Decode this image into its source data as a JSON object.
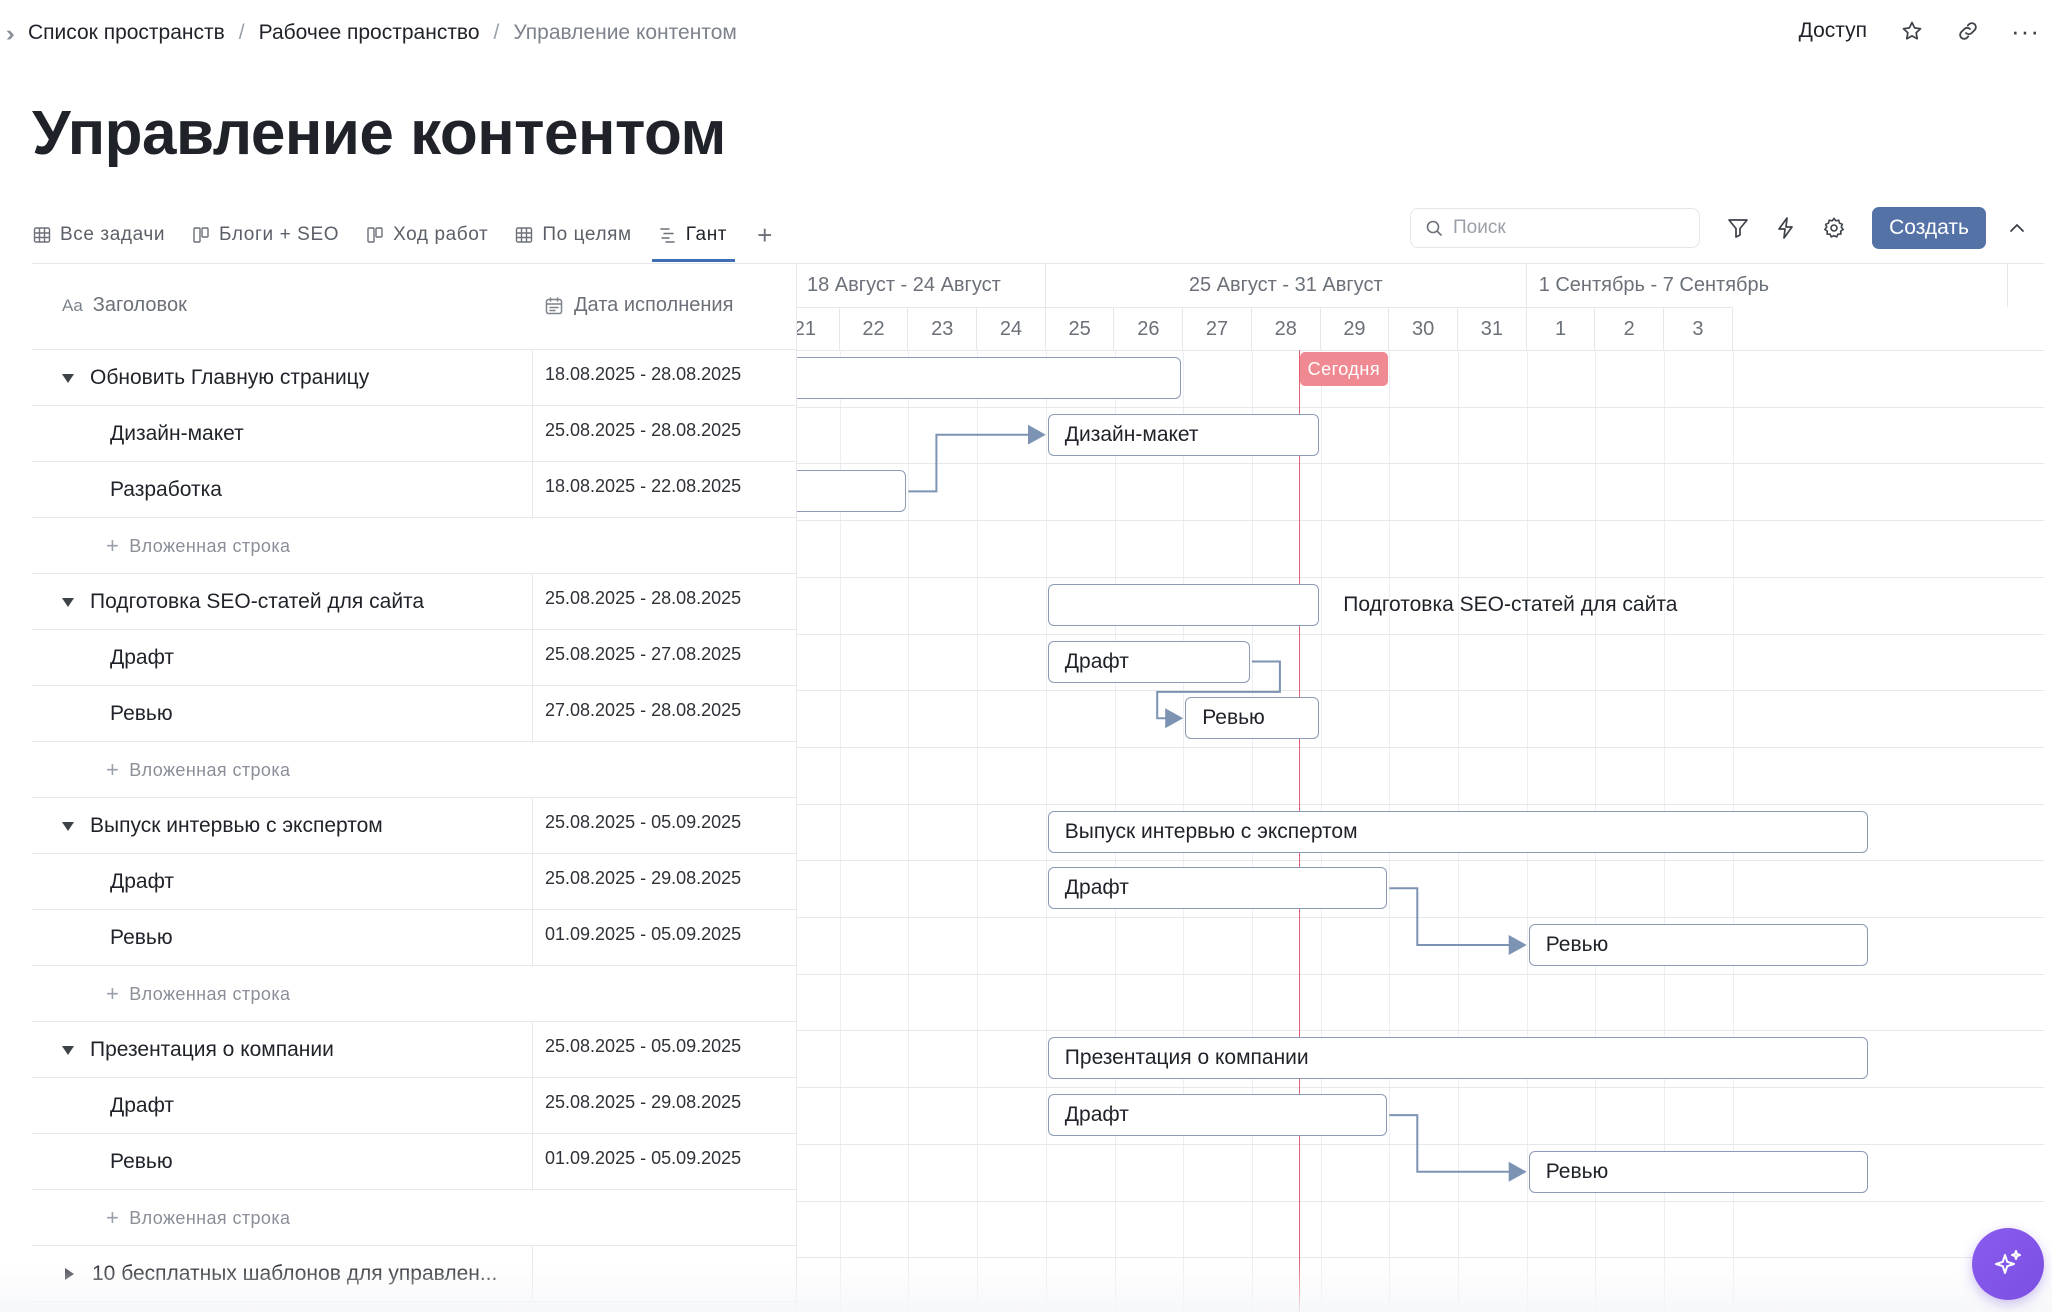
{
  "breadcrumb": {
    "items": [
      "Список пространств",
      "Рабочее пространство",
      "Управление контентом"
    ],
    "separator": "/"
  },
  "top_actions": {
    "access_label": "Доступ"
  },
  "page": {
    "title": "Управление контентом"
  },
  "tabs": [
    {
      "label": "Все задачи",
      "icon": "table-icon"
    },
    {
      "label": "Блоги + SEO",
      "icon": "board-icon"
    },
    {
      "label": "Ход работ",
      "icon": "board-icon"
    },
    {
      "label": "По целям",
      "icon": "table-icon"
    },
    {
      "label": "Гант",
      "icon": "gantt-icon",
      "active": true
    }
  ],
  "toolbar": {
    "search_placeholder": "Поиск",
    "create_label": "Создать"
  },
  "table": {
    "col_title": "Заголовок",
    "col_title_icon_text": "Aa",
    "col_date": "Дата исполнения",
    "add_subrow_label": "Вложенная строка",
    "rows": [
      {
        "type": "parent",
        "title": "Обновить Главную страницу",
        "date": "18.08.2025 - 28.08.2025"
      },
      {
        "type": "child",
        "title": "Дизайн-макет",
        "date": "25.08.2025 - 28.08.2025"
      },
      {
        "type": "child",
        "title": "Разработка",
        "date": "18.08.2025 - 22.08.2025"
      },
      {
        "type": "add"
      },
      {
        "type": "parent",
        "title": "Подготовка SEO-статей для сайта",
        "date": "25.08.2025 - 28.08.2025"
      },
      {
        "type": "child",
        "title": "Драфт",
        "date": "25.08.2025 - 27.08.2025"
      },
      {
        "type": "child",
        "title": "Ревью",
        "date": "27.08.2025 - 28.08.2025"
      },
      {
        "type": "add"
      },
      {
        "type": "parent",
        "title": "Выпуск интервью с экспертом",
        "date": "25.08.2025 - 05.09.2025"
      },
      {
        "type": "child",
        "title": "Драфт",
        "date": "25.08.2025 - 29.08.2025"
      },
      {
        "type": "child",
        "title": "Ревью",
        "date": "01.09.2025 - 05.09.2025"
      },
      {
        "type": "add"
      },
      {
        "type": "parent",
        "title": "Презентация о компании",
        "date": "25.08.2025 - 05.09.2025"
      },
      {
        "type": "child",
        "title": "Драфт",
        "date": "25.08.2025 - 29.08.2025"
      },
      {
        "type": "child",
        "title": "Ревью",
        "date": "01.09.2025 - 05.09.2025"
      },
      {
        "type": "add"
      },
      {
        "type": "parent-collapsed",
        "title": "10 бесплатных шаблонов для управлен...",
        "date": ""
      }
    ]
  },
  "gantt": {
    "weeks": [
      "18 Август - 24 Август",
      "25 Август - 31 Август",
      "1 Сентябрь - 7 Сентябрь"
    ],
    "days": [
      "21",
      "22",
      "23",
      "24",
      "25",
      "26",
      "27",
      "28",
      "29",
      "30",
      "31",
      "1",
      "2",
      "3"
    ],
    "today_label": "Сегодня",
    "today_date": "29.08.2025",
    "bar_labels": {
      "design": "Дизайн-макет",
      "seo_outside": "Подготовка SEO-статей для сайта",
      "seo_draft": "Драфт",
      "seo_review": "Ревью",
      "interview": "Выпуск интервью с экспертом",
      "interview_draft": "Драфт",
      "interview_review": "Ревью",
      "presentation": "Презентация о компании",
      "presentation_draft": "Драфт",
      "presentation_review": "Ревью"
    }
  },
  "colors": {
    "accent": "#5572a7",
    "tab_underline": "#3f6fb3",
    "today": "#e06070",
    "today_badge": "#ef8a93",
    "bar_border": "#8c9bb5",
    "ai_button": "#8a5cf0"
  }
}
